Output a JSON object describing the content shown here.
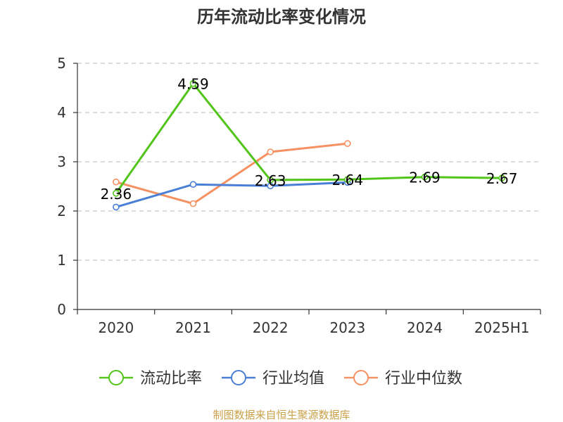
{
  "chart_data": {
    "type": "line",
    "title": "历年流动比率变化情况",
    "categories": [
      "2020",
      "2021",
      "2022",
      "2023",
      "2024",
      "2025H1"
    ],
    "ylim": [
      0,
      5
    ],
    "yticks": [
      "0",
      "1",
      "2",
      "3",
      "4",
      "5"
    ],
    "grid": true,
    "legend_position": "bottom",
    "series": [
      {
        "name": "流动比率",
        "color": "#52c41a",
        "values": [
          2.36,
          4.59,
          2.63,
          2.64,
          2.69,
          2.67
        ],
        "data_labels": [
          "2.36",
          "4.59",
          "2.63",
          "2.64",
          "2.69",
          "2.67"
        ]
      },
      {
        "name": "行业均值",
        "color": "#4a7fd6",
        "values": [
          2.08,
          2.54,
          2.51,
          2.58,
          null,
          null
        ]
      },
      {
        "name": "行业中位数",
        "color": "#f59162",
        "values": [
          2.59,
          2.15,
          3.2,
          3.37,
          null,
          null
        ]
      }
    ]
  },
  "footer": {
    "source": "制图数据来自恒生聚源数据库"
  }
}
